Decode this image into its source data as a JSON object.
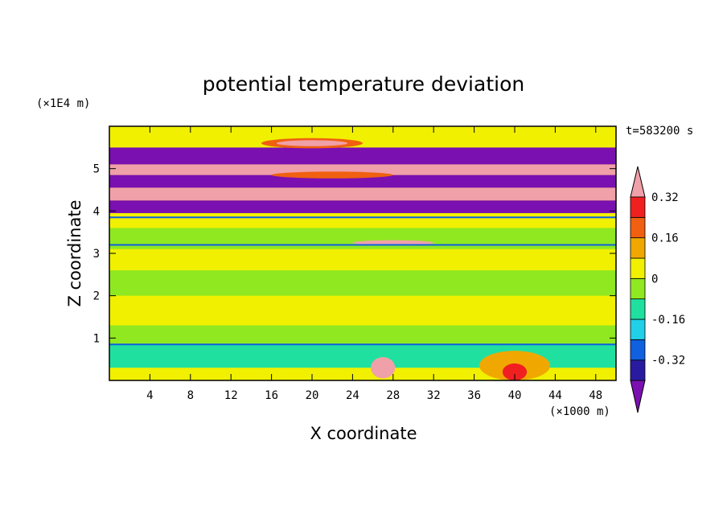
{
  "chart_data": {
    "type": "heatmap",
    "title": "potential temperature deviation",
    "xlabel": "X coordinate",
    "ylabel": "Z coordinate",
    "x_units": "(×1000 m)",
    "y_units": "(×1E4 m)",
    "time_label": "t=583200 s",
    "xlim": [
      0,
      50
    ],
    "ylim": [
      0,
      6
    ],
    "x_ticks": [
      4,
      8,
      12,
      16,
      20,
      24,
      28,
      32,
      36,
      40,
      44,
      48
    ],
    "y_ticks": [
      1,
      2,
      3,
      4,
      5
    ],
    "colorbar": {
      "levels": [
        -0.4,
        -0.32,
        -0.24,
        -0.16,
        -0.08,
        0,
        0.08,
        0.16,
        0.24,
        0.32,
        0.4
      ],
      "colors": [
        "#7a10b0",
        "#2a1aa0",
        "#1060e0",
        "#20d0e8",
        "#20e0a0",
        "#90e820",
        "#f0f000",
        "#f0a800",
        "#f06010",
        "#f02020",
        "#f0a0a8"
      ],
      "labels": [
        "0.32",
        "0.16",
        "0",
        "-0.16",
        "-0.32"
      ]
    },
    "bands": [
      {
        "z0": 0.0,
        "z1": 0.3,
        "level": "0.08"
      },
      {
        "z0": 0.3,
        "z1": 0.85,
        "level": "-0.08"
      },
      {
        "z0": 0.85,
        "z1": 1.3,
        "level": "0"
      },
      {
        "z0": 1.3,
        "z1": 2.0,
        "level": "0.08"
      },
      {
        "z0": 2.0,
        "z1": 2.6,
        "level": "0"
      },
      {
        "z0": 2.6,
        "z1": 3.1,
        "level": "0.08"
      },
      {
        "z0": 3.1,
        "z1": 3.6,
        "level": "0"
      },
      {
        "z0": 3.6,
        "z1": 3.95,
        "level": "0.08"
      },
      {
        "z0": 3.95,
        "z1": 4.25,
        "level": "-0.4"
      },
      {
        "z0": 4.25,
        "z1": 4.55,
        "level": "0.4"
      },
      {
        "z0": 4.55,
        "z1": 4.85,
        "level": "-0.4"
      },
      {
        "z0": 4.85,
        "z1": 5.1,
        "level": "0.4"
      },
      {
        "z0": 5.1,
        "z1": 5.5,
        "level": "-0.4"
      },
      {
        "z0": 5.5,
        "z1": 6.0,
        "level": "0.08"
      }
    ]
  }
}
